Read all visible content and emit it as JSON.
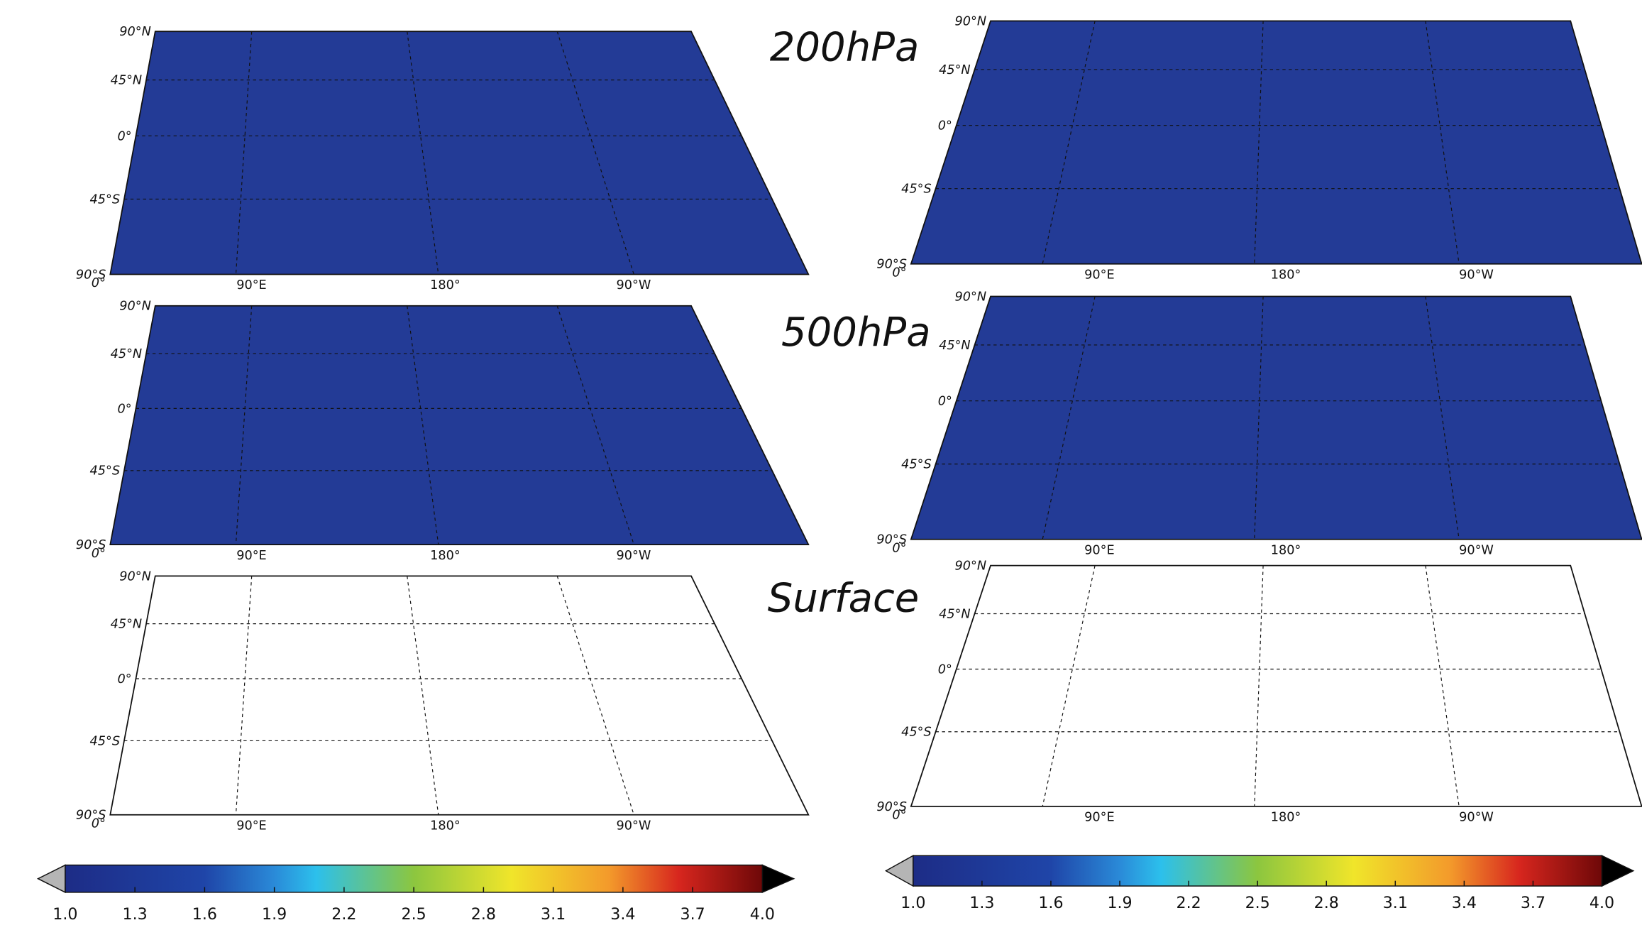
{
  "levels": [
    "200hPa",
    "500hPa",
    "Surface"
  ],
  "map_axes": {
    "lat_labels": [
      "90°N",
      "45°N",
      "0°",
      "45°S",
      "90°S"
    ],
    "lon_labels": [
      "0°",
      "90°E",
      "180°",
      "90°W"
    ]
  },
  "colorbars": [
    {
      "ticks": [
        {
          "value": 1,
          "label": "1.0"
        },
        1.3,
        1.6,
        1.9,
        2.2,
        2.5,
        2.8,
        3.1,
        3.4,
        3.7,
        {
          "value": 4,
          "label": "4.0"
        }
      ]
    },
    {
      "ticks": [
        {
          "value": 1,
          "label": "1.0"
        },
        1.3,
        1.6,
        1.9,
        2.2,
        2.5,
        2.8,
        3.1,
        3.4,
        3.7,
        {
          "value": 4,
          "label": "4.0"
        }
      ]
    }
  ]
}
